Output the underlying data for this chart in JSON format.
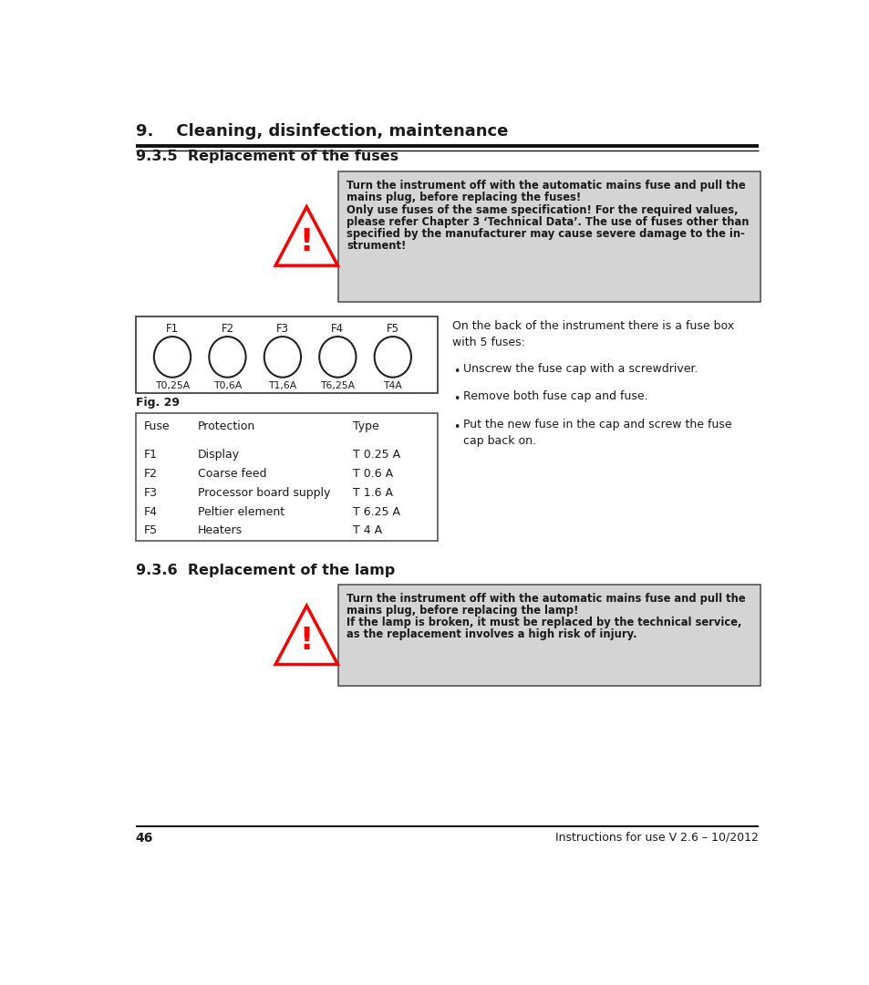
{
  "page_title": "9.    Cleaning, disinfection, maintenance",
  "section1_title": "9.3.5  Replacement of the fuses",
  "section2_title": "9.3.6  Replacement of the lamp",
  "warn1_lines": [
    "Turn the instrument off with the automatic mains fuse and pull the",
    "mains plug, before replacing the fuses!",
    "Only use fuses of the same specification! For the required values,",
    "please refer Chapter 3 ‘Technical Data’. The use of fuses other than",
    "specified by the manufacturer may cause severe damage to the in-",
    "strument!"
  ],
  "warn2_lines": [
    "Turn the instrument off with the automatic mains fuse and pull the",
    "mains plug, before replacing the lamp!",
    "If the lamp is broken, it must be replaced by the technical service,",
    "as the replacement involves a high risk of injury."
  ],
  "fuse_labels": [
    "F1",
    "F2",
    "F3",
    "F4",
    "F5"
  ],
  "fuse_values": [
    "T0,25A",
    "T0,6A",
    "T1,6A",
    "T6,25A",
    "T4A"
  ],
  "fig_label": "Fig. 29",
  "table_headers": [
    "Fuse",
    "Protection",
    "Type"
  ],
  "table_rows": [
    [
      "F1",
      "Display",
      "T 0.25 A"
    ],
    [
      "F2",
      "Coarse feed",
      "T 0.6 A"
    ],
    [
      "F3",
      "Processor board supply",
      "T 1.6 A"
    ],
    [
      "F4",
      "Peltier element",
      "T 6.25 A"
    ],
    [
      "F5",
      "Heaters",
      "T 4 A"
    ]
  ],
  "fuse_box_text": "On the back of the instrument there is a fuse box\nwith 5 fuses:",
  "bullets": [
    "Unscrew the fuse cap with a screwdriver.",
    "Remove both fuse cap and fuse.",
    "Put the new fuse in the cap and screw the fuse\ncap back on."
  ],
  "page_number": "46",
  "footer_right": "Instructions for use V 2.6 – 10/2012",
  "bg_color": "#ffffff",
  "text_color": "#1a1a1a",
  "warning_bg": "#d4d4d4",
  "warning_border": "#555555",
  "table_border": "#555555",
  "fuse_diagram_border": "#333333"
}
